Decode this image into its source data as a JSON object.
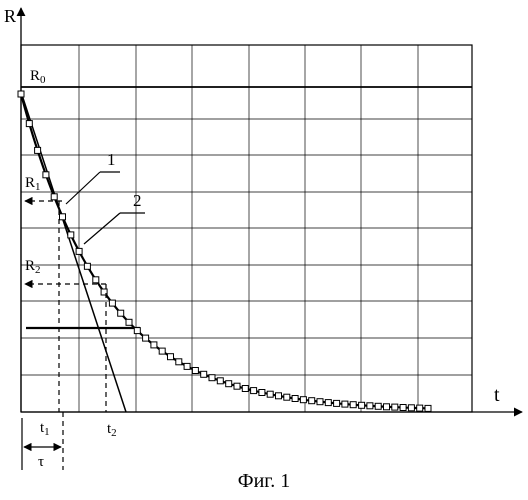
{
  "figure": {
    "caption": "Фиг. 1",
    "axes": {
      "y_label": "R",
      "x_label": "t"
    },
    "labels": {
      "r0": "R",
      "r0_sub": "0",
      "r1": "R",
      "r1_sub": "1",
      "r2": "R",
      "r2_sub": "2",
      "t1": "t",
      "t1_sub": "1",
      "t2": "t",
      "t2_sub": "2",
      "tau": "τ",
      "line1": "1",
      "line2": "2"
    },
    "grid": true,
    "curve": {
      "shape": "exponential-decay",
      "marker": "open-square",
      "marker_count": 50,
      "decay_fraction": 0.48
    },
    "colors": {
      "ink": "#000000",
      "background": "#ffffff"
    }
  }
}
